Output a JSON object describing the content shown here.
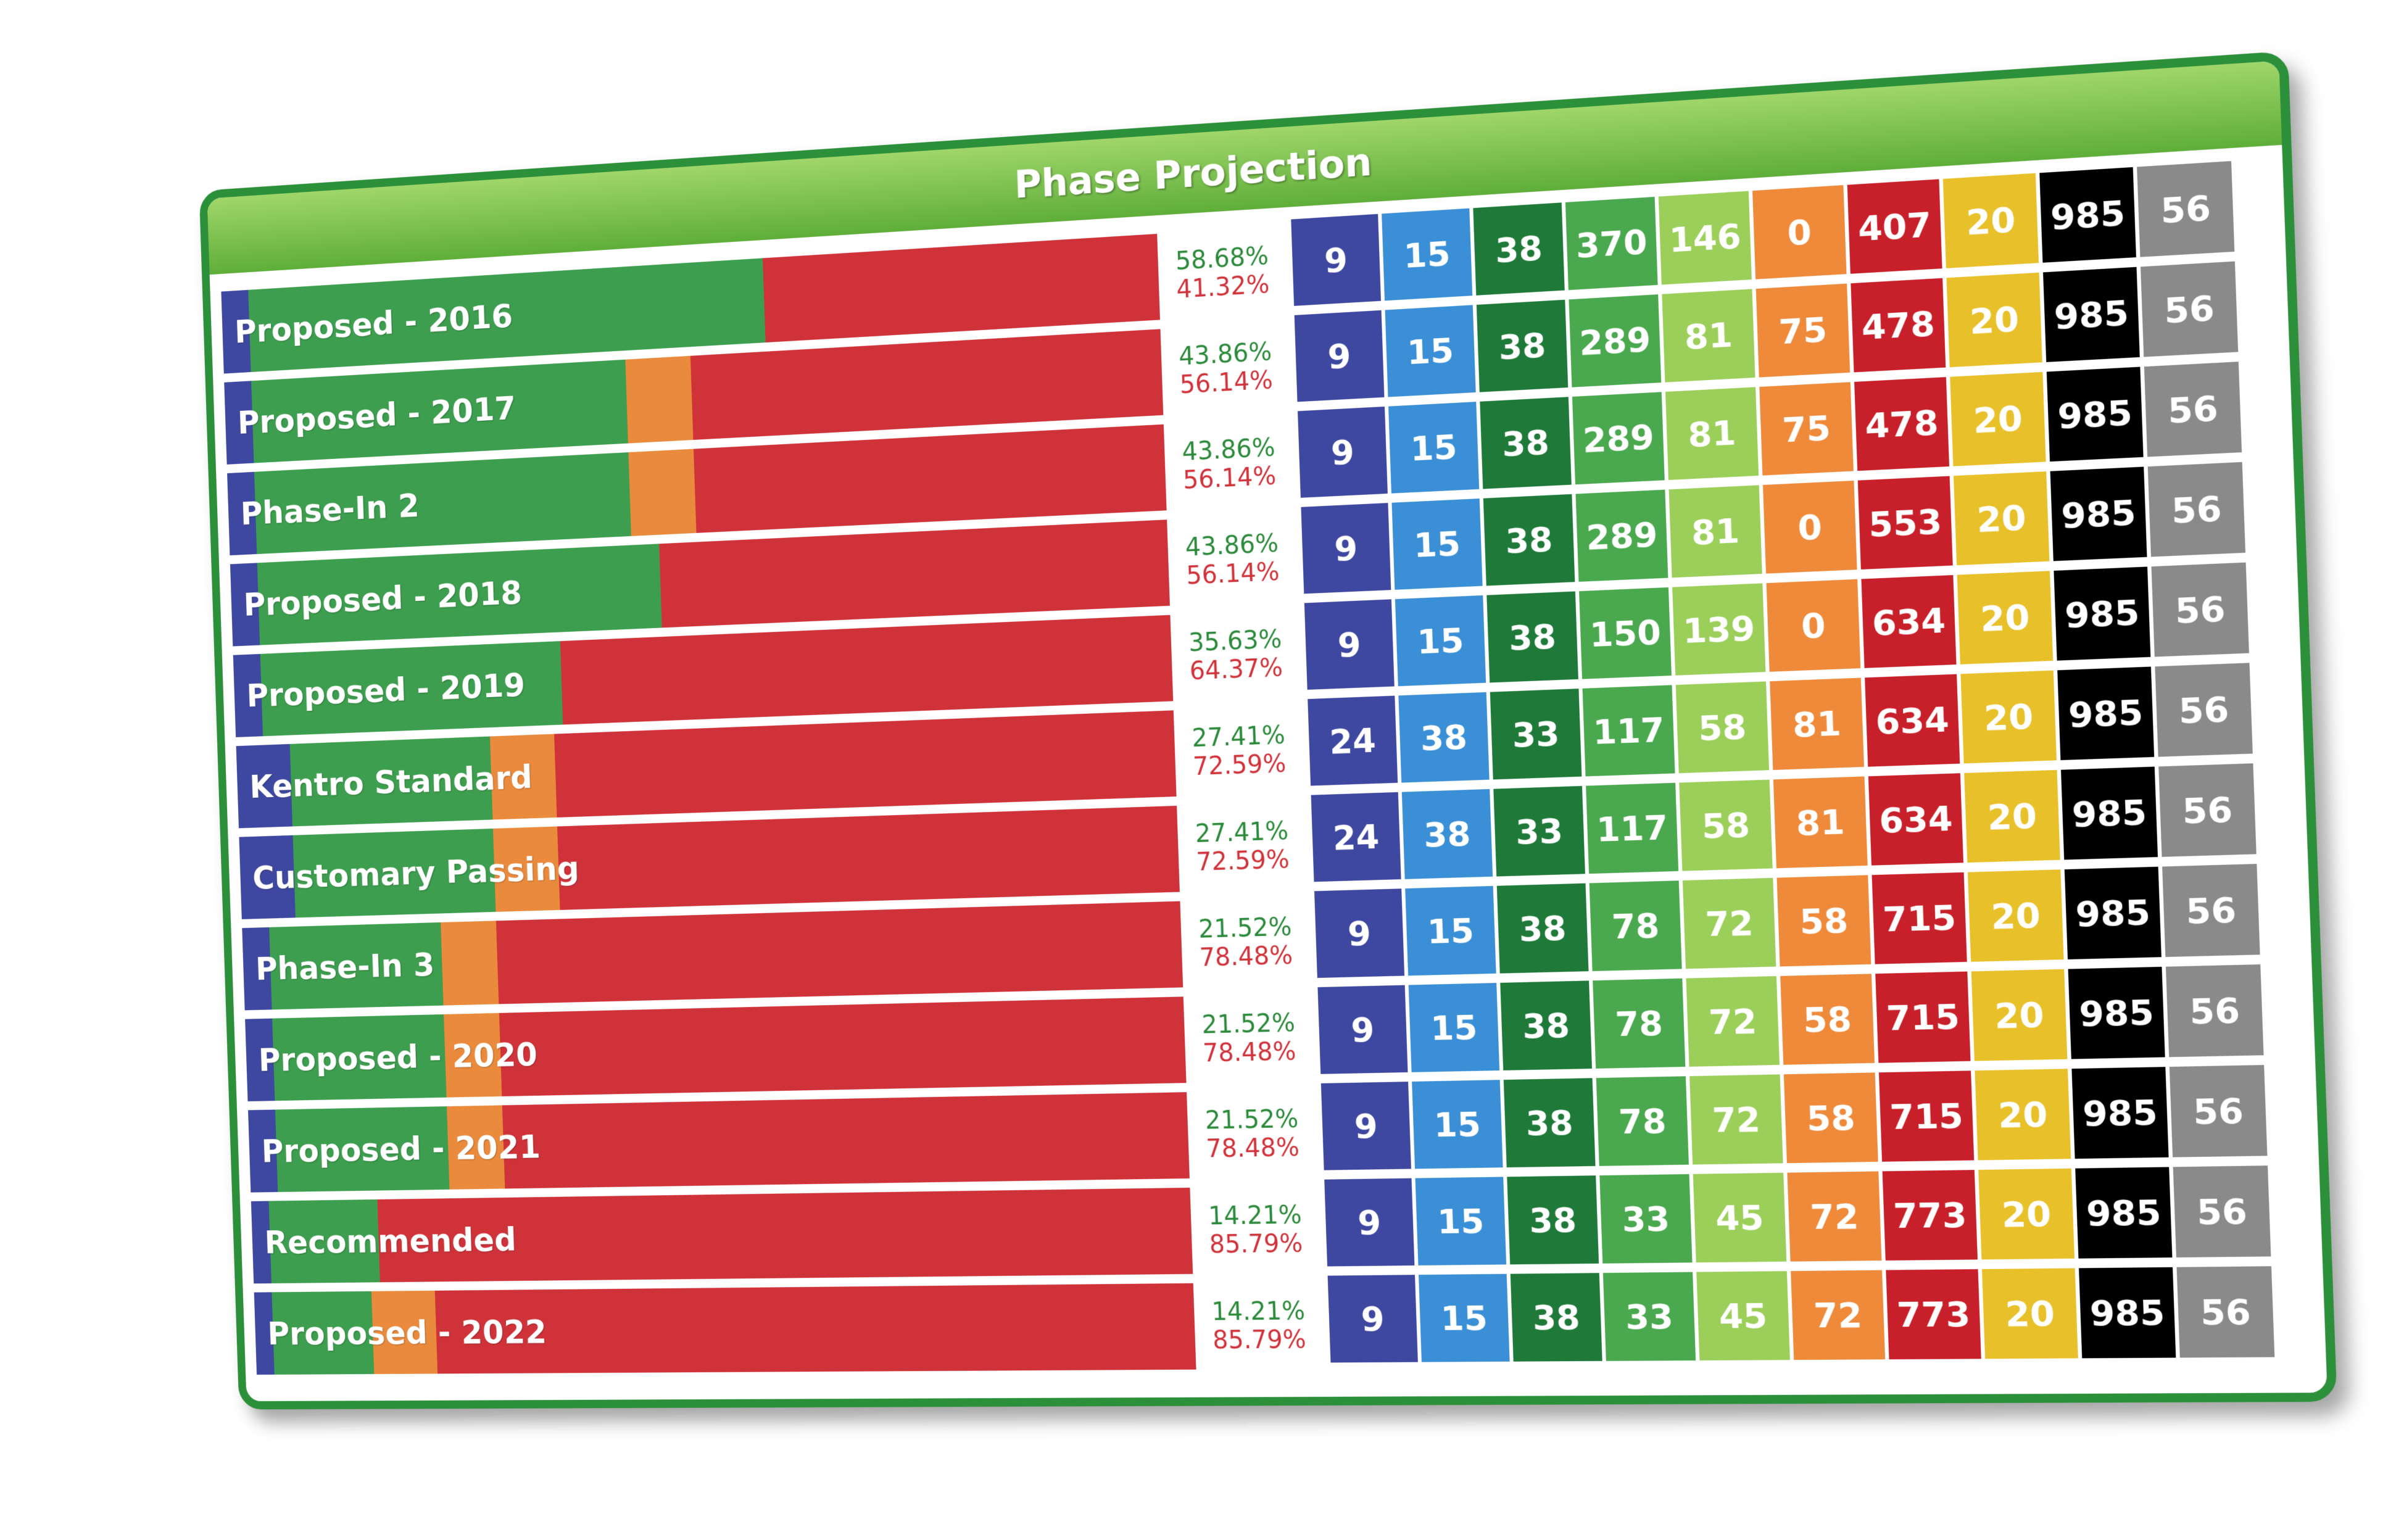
{
  "title": "Phase Projection",
  "colors": {
    "blue": "#3f48a0",
    "green": "#3c9e4e",
    "orange": "#ea8a3c",
    "red": "#d0323a",
    "header_light": "#9fd66a",
    "header_dark": "#5fae3a",
    "border": "#2c8f3a",
    "column_colors": [
      "#3f48a0",
      "#3a8fd6",
      "#1f7a3a",
      "#4aa84e",
      "#9ccf5a",
      "#ee8a3a",
      "#c8202a",
      "#e8c02a",
      "#000000",
      "#8a8a8a"
    ]
  },
  "chart_data": {
    "type": "bar",
    "orientation": "horizontal stacked 100%",
    "categories": [
      "Proposed - 2016",
      "Proposed - 2017",
      "Phase-In 2",
      "Proposed - 2018",
      "Proposed - 2019",
      "Kentro Standard",
      "Customary Passing",
      "Phase-In 3",
      "Proposed - 2020",
      "Proposed - 2021",
      "Recommended",
      "Proposed - 2022"
    ],
    "series": [
      {
        "color": "#3f48a0",
        "values": [
          0.03,
          0.03,
          0.03,
          0.03,
          0.03,
          0.06,
          0.06,
          0.03,
          0.03,
          0.03,
          0.02,
          0.02
        ]
      },
      {
        "color": "#3c9e4e",
        "values": [
          0.56,
          0.41,
          0.41,
          0.44,
          0.33,
          0.22,
          0.22,
          0.19,
          0.19,
          0.19,
          0.12,
          0.11
        ]
      },
      {
        "color": "#ea8a3c",
        "values": [
          0.0,
          0.07,
          0.07,
          0.0,
          0.0,
          0.07,
          0.07,
          0.06,
          0.06,
          0.06,
          0.0,
          0.07
        ]
      },
      {
        "color": "#d0323a",
        "values": [
          0.41,
          0.49,
          0.49,
          0.53,
          0.64,
          0.65,
          0.65,
          0.72,
          0.72,
          0.72,
          0.86,
          0.8
        ]
      }
    ],
    "percent_labels": [
      [
        "58.68%",
        "41.32%"
      ],
      [
        "43.86%",
        "56.14%"
      ],
      [
        "43.86%",
        "56.14%"
      ],
      [
        "43.86%",
        "56.14%"
      ],
      [
        "35.63%",
        "64.37%"
      ],
      [
        "27.41%",
        "72.59%"
      ],
      [
        "27.41%",
        "72.59%"
      ],
      [
        "21.52%",
        "78.48%"
      ],
      [
        "21.52%",
        "78.48%"
      ],
      [
        "21.52%",
        "78.48%"
      ],
      [
        "14.21%",
        "85.79%"
      ],
      [
        "14.21%",
        "85.79%"
      ]
    ],
    "table": [
      [
        9,
        15,
        38,
        370,
        146,
        0,
        407,
        20,
        985,
        56
      ],
      [
        9,
        15,
        38,
        289,
        81,
        75,
        478,
        20,
        985,
        56
      ],
      [
        9,
        15,
        38,
        289,
        81,
        75,
        478,
        20,
        985,
        56
      ],
      [
        9,
        15,
        38,
        289,
        81,
        0,
        553,
        20,
        985,
        56
      ],
      [
        9,
        15,
        38,
        150,
        139,
        0,
        634,
        20,
        985,
        56
      ],
      [
        24,
        38,
        33,
        117,
        58,
        81,
        634,
        20,
        985,
        56
      ],
      [
        24,
        38,
        33,
        117,
        58,
        81,
        634,
        20,
        985,
        56
      ],
      [
        9,
        15,
        38,
        78,
        72,
        58,
        715,
        20,
        985,
        56
      ],
      [
        9,
        15,
        38,
        78,
        72,
        58,
        715,
        20,
        985,
        56
      ],
      [
        9,
        15,
        38,
        78,
        72,
        58,
        715,
        20,
        985,
        56
      ],
      [
        9,
        15,
        38,
        33,
        45,
        72,
        773,
        20,
        985,
        56
      ],
      [
        9,
        15,
        38,
        33,
        45,
        72,
        773,
        20,
        985,
        56
      ]
    ]
  }
}
